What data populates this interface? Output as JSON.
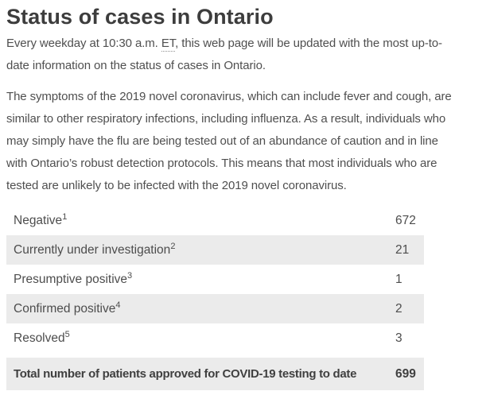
{
  "page": {
    "title": "Status of cases in Ontario"
  },
  "intro": {
    "line1_before": "Every weekday at 10:30 a.m. ",
    "abbr": "ET",
    "line1_after": ", this web page will be updated with the most up-to-",
    "line2": "date information on the status of cases in Ontario."
  },
  "symptoms": {
    "lines": [
      "The symptoms of the 2019 novel coronavirus, which can include fever and cough, are",
      "similar to other respiratory infections, including influenza. As a result, individuals who",
      "may simply have the flu are being tested out of an abundance of caution and in line",
      "with Ontario’s robust detection protocols. This means that most individuals who are",
      "tested are unlikely to be infected with the 2019 novel coronavirus."
    ]
  },
  "status_table": {
    "rows": [
      {
        "label": "Negative",
        "footnote": "1",
        "value": "672"
      },
      {
        "label": "Currently under investigation",
        "footnote": "2",
        "value": "21"
      },
      {
        "label": "Presumptive positive",
        "footnote": "3",
        "value": "1"
      },
      {
        "label": "Confirmed positive",
        "footnote": "4",
        "value": "2"
      },
      {
        "label": "Resolved",
        "footnote": "5",
        "value": "3"
      }
    ],
    "total_row": {
      "label": "Total number of patients approved for COVID-19 testing to date",
      "value": "699"
    }
  },
  "colors": {
    "shaded_row_bg": "#ebebeb",
    "body_text": "#4d4d4d",
    "heading_text": "#3d3d3d"
  }
}
